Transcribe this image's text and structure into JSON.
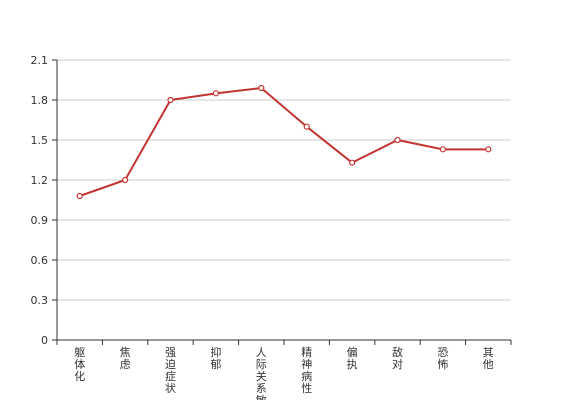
{
  "chart_data": {
    "type": "line",
    "categories": [
      "躯体化",
      "焦虑",
      "强迫症状",
      "抑郁",
      "人际关系敏感",
      "精神病性",
      "偏执",
      "敌对",
      "恐怖",
      "其他"
    ],
    "series": [
      {
        "values": [
          1.08,
          1.2,
          1.8,
          1.85,
          1.89,
          1.6,
          1.33,
          1.5,
          1.43,
          1.43
        ],
        "color": "#c23531"
      }
    ],
    "ylim": [
      0,
      2.1
    ],
    "yticks": [
      "0",
      "0.3",
      "0.6",
      "0.9",
      "1.2",
      "1.5",
      "1.8",
      "2.1"
    ],
    "grid": true,
    "colors": {
      "line": "#c23531",
      "grid": "#cccccc",
      "axis": "#333333"
    }
  }
}
